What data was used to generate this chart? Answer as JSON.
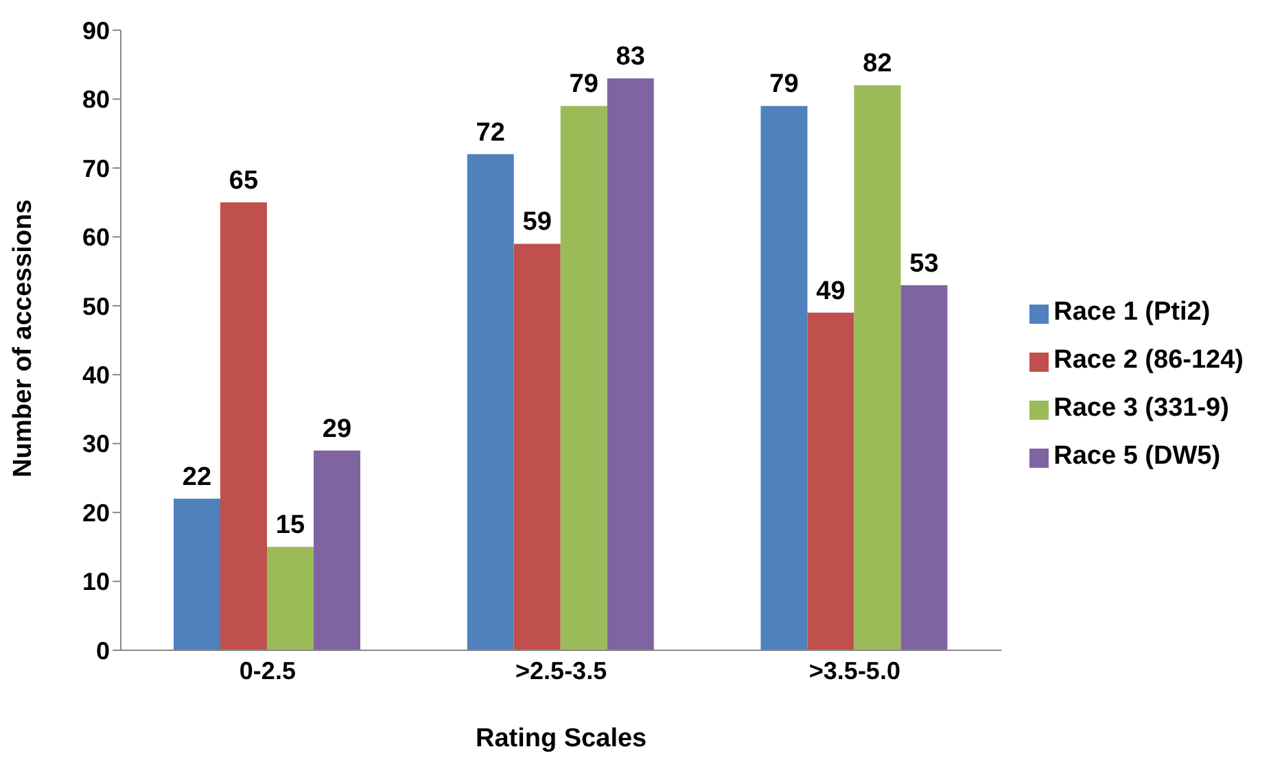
{
  "chart_data": {
    "type": "bar",
    "xlabel": "Rating Scales",
    "ylabel": "Number of accessions",
    "categories": [
      "0-2.5",
      ">2.5-3.5",
      ">3.5-5.0"
    ],
    "series": [
      {
        "name": "Race 1 (Pti2)",
        "color": "#4f81bd",
        "values": [
          22,
          72,
          79
        ]
      },
      {
        "name": "Race 2 (86-124)",
        "color": "#c0504d",
        "values": [
          65,
          59,
          49
        ]
      },
      {
        "name": "Race 3 (331-9)",
        "color": "#9bbb59",
        "values": [
          15,
          79,
          82
        ]
      },
      {
        "name": "Race 5 (DW5)",
        "color": "#8064a2",
        "values": [
          29,
          83,
          53
        ]
      }
    ],
    "ylim": [
      0,
      90
    ],
    "yticks": [
      0,
      10,
      20,
      30,
      40,
      50,
      60,
      70,
      80,
      90
    ],
    "grid": false,
    "legend": "right",
    "data_labels": true
  }
}
